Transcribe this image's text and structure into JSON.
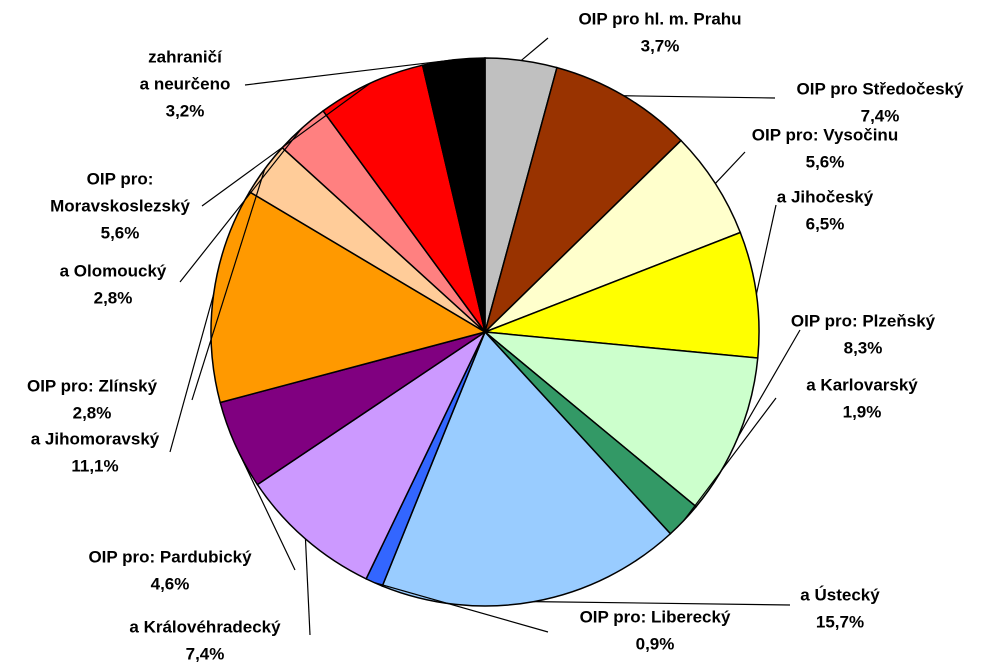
{
  "chart_data": {
    "type": "pie",
    "categories": [
      [
        "OIP pro hl. m. Prahu"
      ],
      [
        "OIP pro Středočeský"
      ],
      [
        "OIP pro: Vysočinu"
      ],
      [
        "a Jihočeský"
      ],
      [
        "OIP pro: Plzeňský"
      ],
      [
        "a Karlovarský"
      ],
      [
        "a Ústecký"
      ],
      [
        "OIP pro: Liberecký"
      ],
      [
        "a Královéhradecký"
      ],
      [
        "OIP pro: Pardubický"
      ],
      [
        "a Jihomoravský"
      ],
      [
        "OIP pro: Zlínský"
      ],
      [
        "a Olomoucký"
      ],
      [
        "OIP pro:",
        "Moravskoslezský"
      ],
      [
        "zahraničí",
        "a neurčeno"
      ]
    ],
    "values": [
      3.7,
      7.4,
      5.6,
      6.5,
      8.3,
      1.9,
      15.7,
      0.9,
      7.4,
      4.6,
      11.1,
      2.8,
      2.8,
      5.6,
      3.2
    ],
    "value_labels": [
      "3,7%",
      "7,4%",
      "5,6%",
      "6,5%",
      "8,3%",
      "1,9%",
      "15,7%",
      "0,9%",
      "7,4%",
      "4,6%",
      "11,1%",
      "2,8%",
      "2,8%",
      "5,6%",
      "3,2%"
    ],
    "colors": [
      "#c0c0c0",
      "#993300",
      "#ffffcc",
      "#ffff00",
      "#ccffcc",
      "#339966",
      "#99ccff",
      "#3366ff",
      "#cc99ff",
      "#800080",
      "#ff9900",
      "#ffcc99",
      "#ff8080",
      "#ff0000",
      "#000000"
    ]
  }
}
